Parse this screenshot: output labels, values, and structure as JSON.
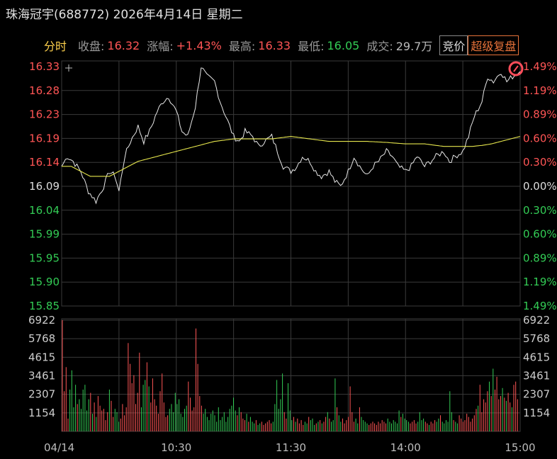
{
  "header": {
    "title": "珠海冠宇(688772) 2026年4月14日 星期二",
    "tab": "分时",
    "close_label": "收盘:",
    "close_value": "16.32",
    "change_label": "涨幅:",
    "change_value": "+1.43%",
    "high_label": "最高:",
    "high_value": "16.33",
    "low_label": "最低:",
    "low_value": "16.05",
    "volume_label": "成交:",
    "volume_value": "29.7万",
    "btn_auction": "竞价",
    "btn_replay": "超级复盘"
  },
  "colors": {
    "up": "#ff5555",
    "down": "#33cc55",
    "neutral": "#dddddd",
    "price_line": "#e8e8e8",
    "avg_line": "#e6e64d",
    "grid": "#3a3a3a",
    "accent": "#e8733a"
  },
  "chart_data": [
    {
      "type": "line",
      "name": "intraday-price",
      "prev_close": 16.09,
      "ylim": [
        15.85,
        16.33
      ],
      "x_ticks": [
        "04/14",
        "10:30",
        "11:30",
        "14:00",
        "15:00"
      ],
      "y_ticks_left": [
        "16.33",
        "16.28",
        "16.23",
        "16.19",
        "16.14",
        "16.09",
        "16.04",
        "15.99",
        "15.95",
        "15.90",
        "15.85"
      ],
      "y_ticks_right": [
        "1.49%",
        "1.19%",
        "0.89%",
        "0.60%",
        "0.30%",
        "0.00%",
        "0.30%",
        "0.60%",
        "0.89%",
        "1.19%",
        "1.49%"
      ],
      "price_anchors_min": [
        0,
        3,
        6,
        10,
        14,
        18,
        22,
        25,
        28,
        30,
        33,
        36,
        40,
        43,
        46,
        50,
        53,
        56,
        60,
        63,
        66,
        70,
        73,
        76,
        80,
        83,
        86,
        90,
        93,
        96,
        100,
        103,
        106,
        110,
        113,
        116,
        120,
        123,
        126,
        130,
        133,
        136,
        140,
        143,
        146,
        150,
        153,
        156,
        160,
        163,
        166,
        170,
        173,
        176,
        180,
        183,
        186,
        190,
        193,
        196,
        200,
        203,
        206,
        210,
        213,
        216,
        220,
        223,
        226,
        230,
        233,
        236,
        240
      ],
      "price_anchors_val": [
        16.13,
        16.15,
        16.14,
        16.12,
        16.08,
        16.06,
        16.09,
        16.12,
        16.11,
        16.08,
        16.15,
        16.18,
        16.21,
        16.18,
        16.2,
        16.24,
        16.26,
        16.27,
        16.24,
        16.2,
        16.19,
        16.25,
        16.33,
        16.31,
        16.3,
        16.26,
        16.23,
        16.19,
        16.18,
        16.2,
        16.19,
        16.17,
        16.18,
        16.19,
        16.16,
        16.13,
        16.12,
        16.13,
        16.15,
        16.14,
        16.12,
        16.11,
        16.12,
        16.1,
        16.09,
        16.12,
        16.15,
        16.13,
        16.11,
        16.13,
        16.14,
        16.16,
        16.15,
        16.13,
        16.12,
        16.13,
        16.15,
        16.13,
        16.14,
        16.15,
        16.16,
        16.14,
        16.15,
        16.16,
        16.19,
        16.23,
        16.26,
        16.31,
        16.3,
        16.32,
        16.3,
        16.31,
        16.32
      ],
      "avg_anchors_min": [
        0,
        5,
        10,
        15,
        20,
        25,
        30,
        40,
        50,
        60,
        70,
        80,
        90,
        100,
        110,
        120,
        130,
        140,
        150,
        160,
        170,
        180,
        190,
        200,
        210,
        215,
        220,
        225,
        230,
        235,
        240
      ],
      "avg_anchors_val": [
        16.13,
        16.13,
        16.12,
        16.11,
        16.11,
        16.11,
        16.12,
        16.14,
        16.15,
        16.16,
        16.17,
        16.18,
        16.185,
        16.185,
        16.185,
        16.19,
        16.185,
        16.18,
        16.18,
        16.18,
        16.178,
        16.175,
        16.175,
        16.17,
        16.17,
        16.17,
        16.172,
        16.175,
        16.18,
        16.185,
        16.19
      ]
    },
    {
      "type": "bar",
      "name": "volume",
      "ylim": [
        0,
        6922
      ],
      "y_ticks": [
        "6922",
        "5768",
        "4615",
        "3461",
        "2307",
        "1154"
      ],
      "volumes": [
        6922,
        2500,
        4000,
        800,
        2600,
        3800,
        1500,
        2900,
        1700,
        2000,
        1400,
        2600,
        2900,
        1300,
        2000,
        2400,
        1100,
        1800,
        900,
        2200,
        1600,
        1300,
        1400,
        700,
        1200,
        2600,
        1900,
        900,
        1400,
        1200,
        600,
        800,
        1700,
        1000,
        1500,
        5500,
        4200,
        3000,
        3500,
        1700,
        2400,
        4900,
        1500,
        2900,
        3200,
        4300,
        2800,
        1800,
        3300,
        2000,
        1600,
        1100,
        2500,
        3600,
        1800,
        900,
        1000,
        1400,
        1700,
        1200,
        2400,
        1700,
        2000,
        1100,
        900,
        1400,
        1600,
        3100,
        2100,
        1300,
        1500,
        6400,
        4200,
        2200,
        1600,
        1100,
        1400,
        900,
        700,
        1100,
        1300,
        1000,
        600,
        1500,
        700,
        900,
        1200,
        600,
        900,
        1400,
        1600,
        2100,
        1300,
        1000,
        1500,
        1200,
        800,
        700,
        1100,
        600,
        900,
        600,
        500,
        700,
        400,
        500,
        600,
        400,
        500,
        600,
        700,
        500,
        600,
        1700,
        3200,
        1400,
        2000,
        3600,
        1200,
        800,
        3000,
        1300,
        700,
        900,
        600,
        800,
        500,
        700,
        400,
        600,
        500,
        900,
        700,
        800,
        400,
        500,
        600,
        700,
        500,
        600,
        900,
        1200,
        800,
        600,
        700,
        3300,
        1500,
        1000,
        600,
        800,
        500,
        700,
        900,
        2800,
        1200,
        600,
        800,
        500,
        1500,
        900,
        700,
        600,
        500,
        400,
        500,
        600,
        500,
        400,
        600,
        500,
        700,
        600,
        500,
        800,
        600,
        500,
        700,
        600,
        500,
        1300,
        900,
        1100,
        800,
        700,
        600,
        500,
        600,
        700,
        500,
        600,
        1200,
        700,
        800,
        600,
        500,
        400,
        600,
        500,
        700,
        600,
        800,
        1000,
        600,
        500,
        700,
        600,
        2500,
        1200,
        700,
        600,
        500,
        1000,
        800,
        600,
        700,
        1100,
        900,
        600,
        800,
        1000,
        1400,
        1600,
        2900,
        1200,
        2000,
        1800,
        2500,
        3100,
        2200,
        3900,
        2600,
        3400,
        2000,
        2200,
        2700,
        2100,
        1900,
        2400,
        1800,
        1500,
        2900,
        3100,
        2000
      ]
    }
  ]
}
